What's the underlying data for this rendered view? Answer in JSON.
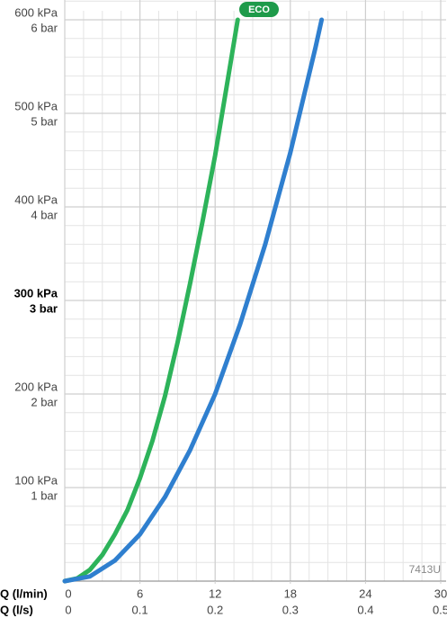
{
  "chart_data": {
    "type": "line",
    "xlabel": "Q (l/min)",
    "x2label": "Q (l/s)",
    "xlim": [
      0,
      30
    ],
    "xticks": [
      0,
      6,
      12,
      18,
      24,
      30
    ],
    "x2lim": [
      0,
      0.5
    ],
    "x2ticks": [
      0,
      0.1,
      0.2,
      0.3,
      0.4,
      0.5
    ],
    "ylim": [
      0,
      600
    ],
    "yticks": [
      {
        "value": 100,
        "label": "100 kPa"
      },
      {
        "value": 200,
        "label": "200 kPa"
      },
      {
        "value": 300,
        "label": "300 kPa"
      },
      {
        "value": 400,
        "label": "400 kPa"
      },
      {
        "value": 500,
        "label": "500 kPa"
      },
      {
        "value": 600,
        "label": "600 kPa"
      }
    ],
    "ytick_bar_labels": [
      "1 bar",
      "2 bar",
      "3 bar",
      "4 bar",
      "5 bar",
      "6 bar"
    ],
    "highlight_ytick": 300,
    "grid": true,
    "badge": "ECO",
    "model": "7413U",
    "series": [
      {
        "name": "ECO",
        "color": "#2db35a",
        "x": [
          0,
          1,
          2,
          3,
          4,
          5,
          6,
          7,
          8,
          9,
          10,
          11,
          12,
          13,
          13.8
        ],
        "values": [
          0,
          3,
          12,
          28,
          50,
          76,
          110,
          150,
          198,
          255,
          318,
          385,
          455,
          535,
          600
        ]
      },
      {
        "color": "#2f7fcf",
        "x": [
          0,
          2,
          4,
          6,
          8,
          10,
          12,
          14,
          16,
          18,
          20,
          20.5
        ],
        "values": [
          0,
          5,
          22,
          50,
          90,
          140,
          200,
          275,
          360,
          458,
          570,
          600
        ]
      }
    ]
  }
}
